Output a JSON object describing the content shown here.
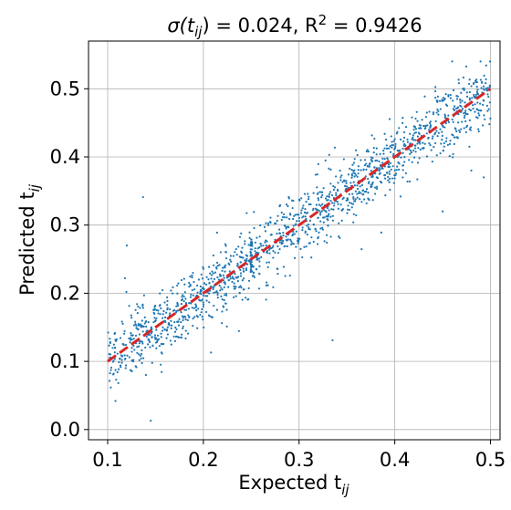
{
  "chart_data": {
    "type": "scatter",
    "title": "σ(t_ij) = 0.024, R² = 0.9426",
    "title_parts": {
      "sigma_lhs": "σ(t",
      "sigma_sub": "ij",
      "sigma_rhs": ") = 0.024, R",
      "r2_sup": "2",
      "r2_rhs": " = 0.9426"
    },
    "xlabel": {
      "text": "Expected t",
      "sub": "ij"
    },
    "ylabel": {
      "text": "Predicted t",
      "sub": "ij"
    },
    "xlim": [
      0.08,
      0.51
    ],
    "ylim": [
      -0.015,
      0.57
    ],
    "xticks": [
      0.1,
      0.2,
      0.3,
      0.4,
      0.5
    ],
    "xtick_labels": [
      "0.1",
      "0.2",
      "0.3",
      "0.4",
      "0.5"
    ],
    "yticks": [
      0.0,
      0.1,
      0.2,
      0.3,
      0.4,
      0.5
    ],
    "ytick_labels": [
      "0.0",
      "0.1",
      "0.2",
      "0.3",
      "0.4",
      "0.5"
    ],
    "grid": true,
    "series": [
      {
        "kind": "scatter",
        "color": "#1f77b4",
        "n_points": 1500,
        "trend": "y ≈ x",
        "residual_sd": 0.024,
        "x_range": [
          0.1,
          0.5
        ],
        "outliers": [
          [
            0.145,
            0.013
          ],
          [
            0.137,
            0.341
          ],
          [
            0.118,
            0.222
          ],
          [
            0.208,
            0.113
          ],
          [
            0.335,
            0.131
          ],
          [
            0.48,
            0.38
          ],
          [
            0.493,
            0.37
          ],
          [
            0.45,
            0.32
          ],
          [
            0.46,
            0.54
          ],
          [
            0.12,
            0.27
          ],
          [
            0.14,
            0.08
          ]
        ],
        "vertical_cluster": {
          "x": 0.25,
          "y_range": [
            0.23,
            0.28
          ]
        }
      },
      {
        "kind": "line",
        "style": "dashed",
        "color": "#d62728",
        "x": [
          0.1,
          0.5
        ],
        "y": [
          0.1,
          0.5
        ]
      }
    ]
  }
}
